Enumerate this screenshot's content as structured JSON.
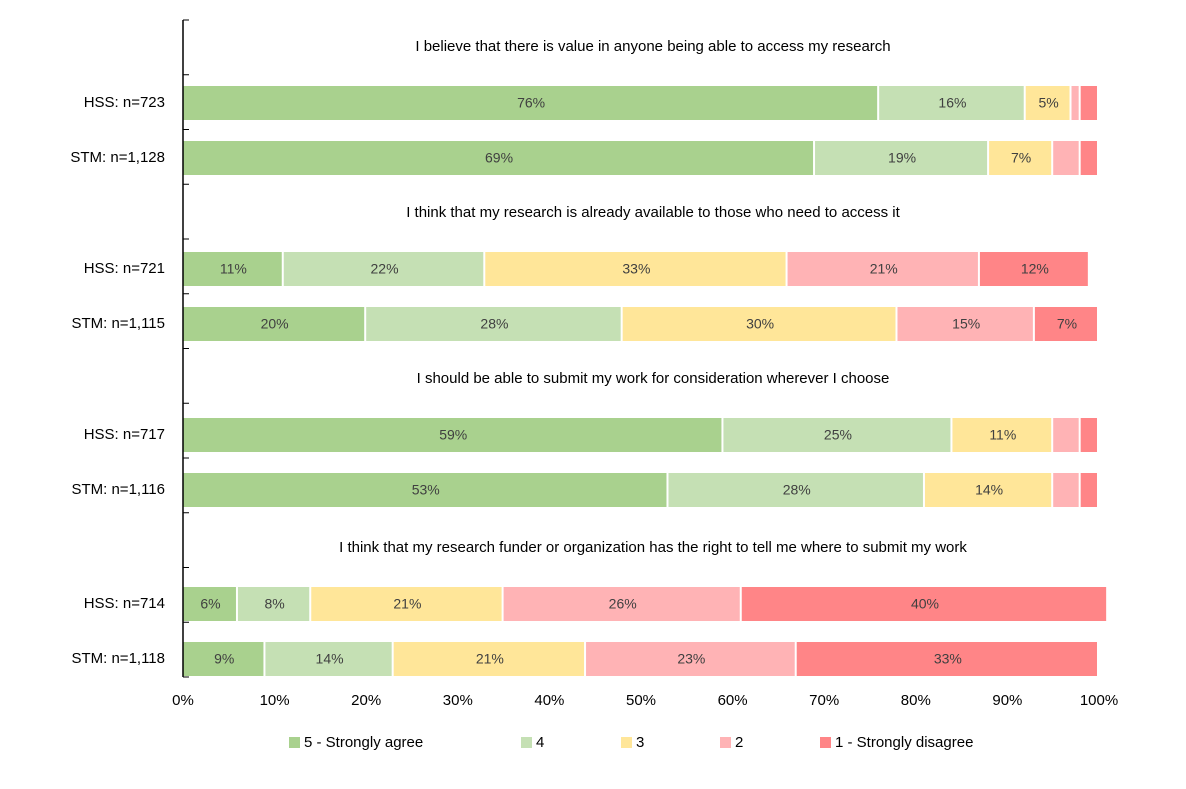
{
  "chart_data": {
    "type": "stacked-bar-horizontal",
    "annotations": [
      "I believe that there is value in anyone being able to access my research",
      "I think that my research is already available to those who need to access it",
      "I should be able to submit my work for consideration wherever I choose",
      "I think that my research funder or organization has the right to tell me where to submit my work"
    ],
    "categories": [
      "HSS: n=723",
      "STM: n=1,128",
      "HSS: n=721",
      "STM: n=1,115",
      "HSS: n=717",
      "STM: n=1,116",
      "HSS: n=714",
      "STM: n=1,118"
    ],
    "series": [
      {
        "name": "5 - Strongly agree",
        "color": "#a9d18e",
        "values": [
          76,
          69,
          11,
          20,
          59,
          53,
          6,
          9
        ],
        "value_labels": [
          "76%",
          "69%",
          "11%",
          "20%",
          "59%",
          "53%",
          "6%",
          "9%"
        ]
      },
      {
        "name": "4",
        "color": "#c5e0b4",
        "values": [
          16,
          19,
          22,
          28,
          25,
          28,
          8,
          14
        ],
        "value_labels": [
          "16%",
          "19%",
          "22%",
          "28%",
          "25%",
          "28%",
          "8%",
          "14%"
        ]
      },
      {
        "name": "3",
        "color": "#ffe699",
        "values": [
          5,
          7,
          33,
          30,
          11,
          14,
          21,
          21
        ],
        "value_labels": [
          "5%",
          "7%",
          "33%",
          "30%",
          "11%",
          "14%",
          "21%",
          "21%"
        ]
      },
      {
        "name": "2",
        "color": "#ffb3b5",
        "values": [
          1,
          3,
          21,
          15,
          3,
          3,
          26,
          23
        ],
        "value_labels": [
          null,
          null,
          "21%",
          "15%",
          null,
          null,
          "26%",
          "23%"
        ]
      },
      {
        "name": "1 - Strongly disagree",
        "color": "#ff8587",
        "values": [
          2,
          2,
          12,
          7,
          2,
          2,
          40,
          33
        ],
        "value_labels": [
          null,
          null,
          "12%",
          "7%",
          null,
          null,
          "40%",
          "33%"
        ]
      }
    ],
    "xlim": [
      0,
      100
    ],
    "xticks": [
      {
        "value": 0,
        "label": "0%"
      },
      {
        "value": 10,
        "label": "10%"
      },
      {
        "value": 20,
        "label": "20%"
      },
      {
        "value": 30,
        "label": "30%"
      },
      {
        "value": 40,
        "label": "40%"
      },
      {
        "value": 50,
        "label": "50%"
      },
      {
        "value": 60,
        "label": "60%"
      },
      {
        "value": 70,
        "label": "70%"
      },
      {
        "value": 80,
        "label": "80%"
      },
      {
        "value": 90,
        "label": "90%"
      },
      {
        "value": 100,
        "label": "100%"
      }
    ],
    "legend": "bottom"
  }
}
